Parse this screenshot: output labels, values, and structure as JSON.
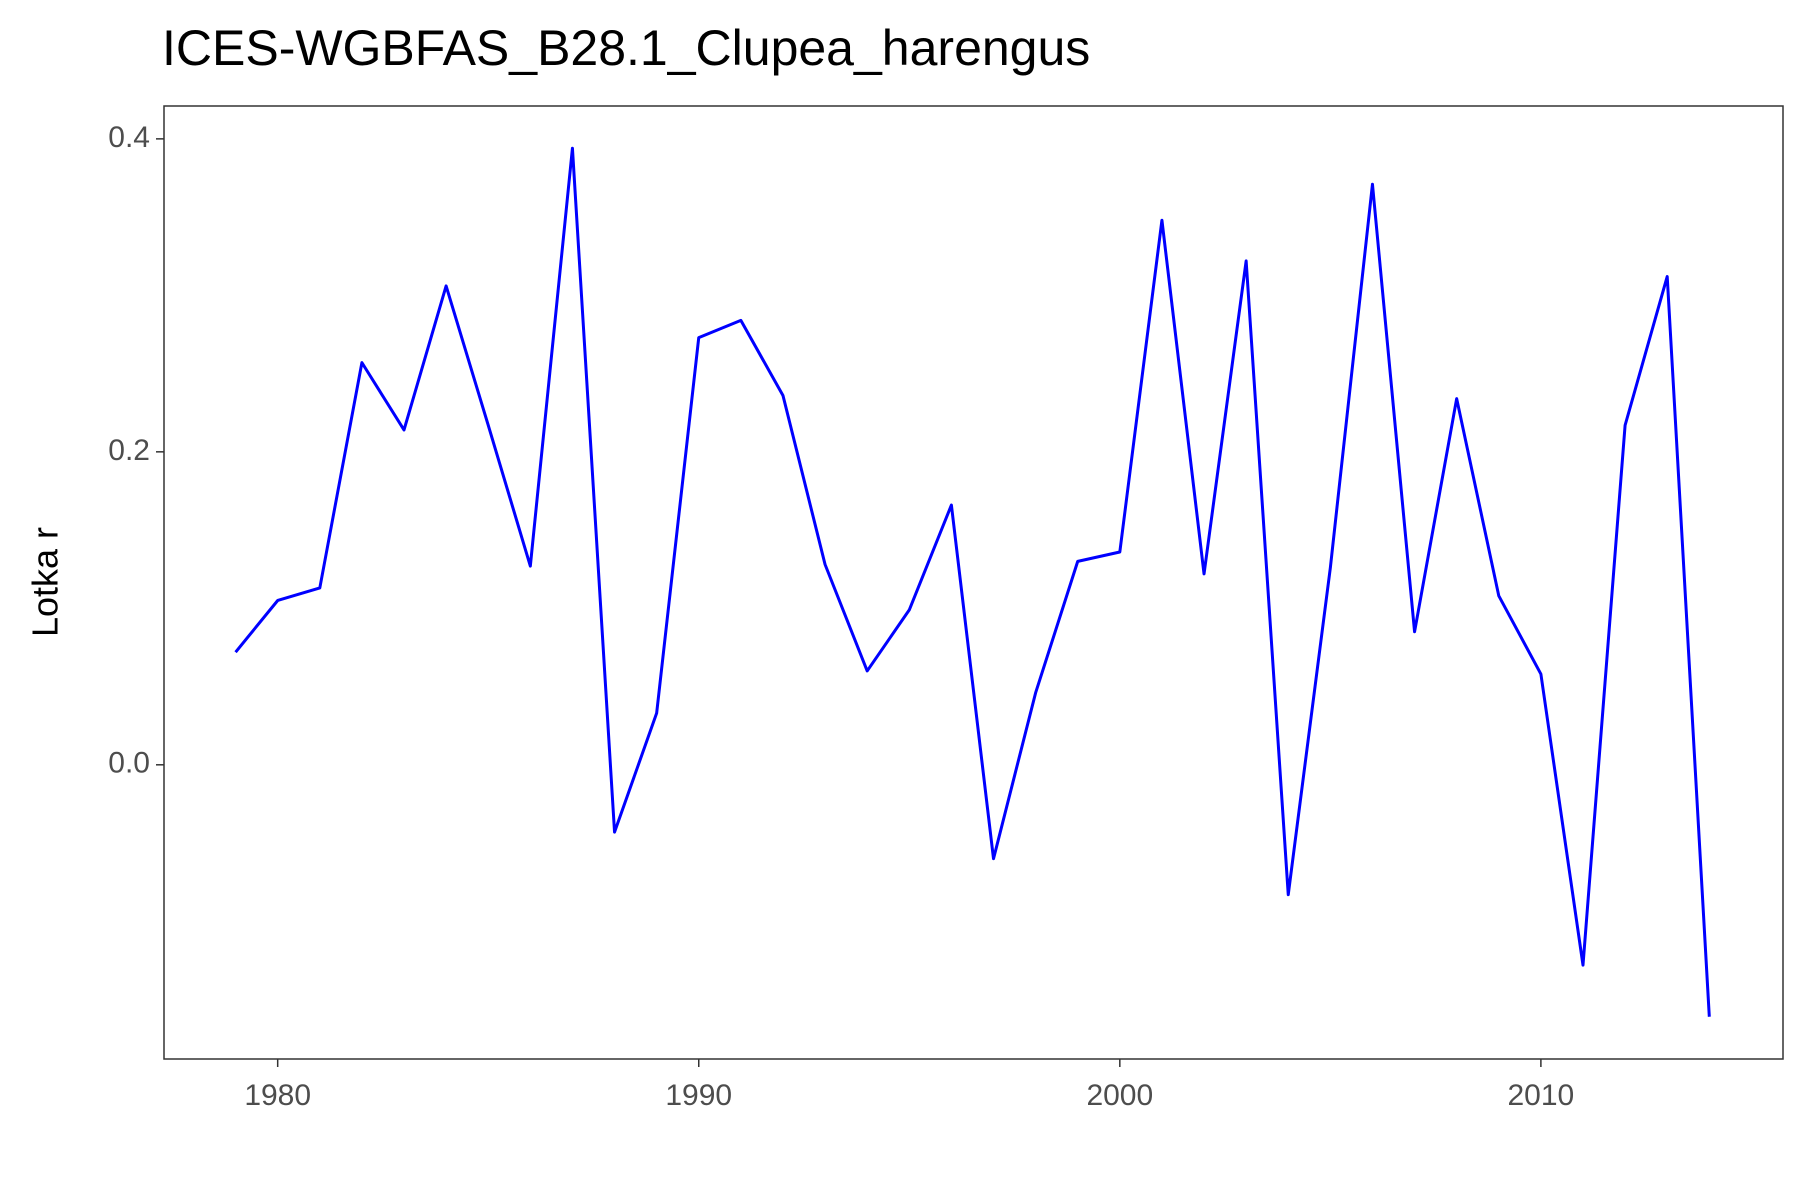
{
  "chart_data": {
    "type": "line",
    "title": "ICES-WGBFAS_B28.1_Clupea_harengus",
    "y_label": "Lotka r",
    "x": [
      1979,
      1980,
      1981,
      1982,
      1983,
      1984,
      1985,
      1986,
      1987,
      1988,
      1989,
      1990,
      1991,
      1992,
      1993,
      1994,
      1995,
      1996,
      1997,
      1998,
      1999,
      2000,
      2001,
      2002,
      2003,
      2004,
      2005,
      2006,
      2007,
      2008,
      2009,
      2010,
      2011,
      2012,
      2013,
      2014
    ],
    "series": [
      {
        "name": "Lotka r",
        "color": "#0000ff",
        "values": [
          0.072,
          0.105,
          0.113,
          0.257,
          0.214,
          0.306,
          0.217,
          0.127,
          0.394,
          -0.043,
          0.033,
          0.273,
          0.284,
          0.236,
          0.128,
          0.06,
          0.099,
          0.166,
          -0.06,
          0.046,
          0.13,
          0.136,
          0.348,
          0.122,
          0.322,
          -0.083,
          0.126,
          0.371,
          0.085,
          0.234,
          0.108,
          0.058,
          -0.128,
          0.217,
          0.312,
          -0.161
        ]
      }
    ],
    "xlim": [
      1977.3,
      2015.75
    ],
    "xticks": [
      1980,
      1990,
      2000,
      2010
    ],
    "ylim": [
      -0.188,
      0.421
    ],
    "yticks": [
      {
        "value": 0,
        "label": "0.0"
      },
      {
        "value": 0.2,
        "label": "0.2"
      },
      {
        "value": 0.4,
        "label": "0.4"
      }
    ],
    "grid": false
  }
}
